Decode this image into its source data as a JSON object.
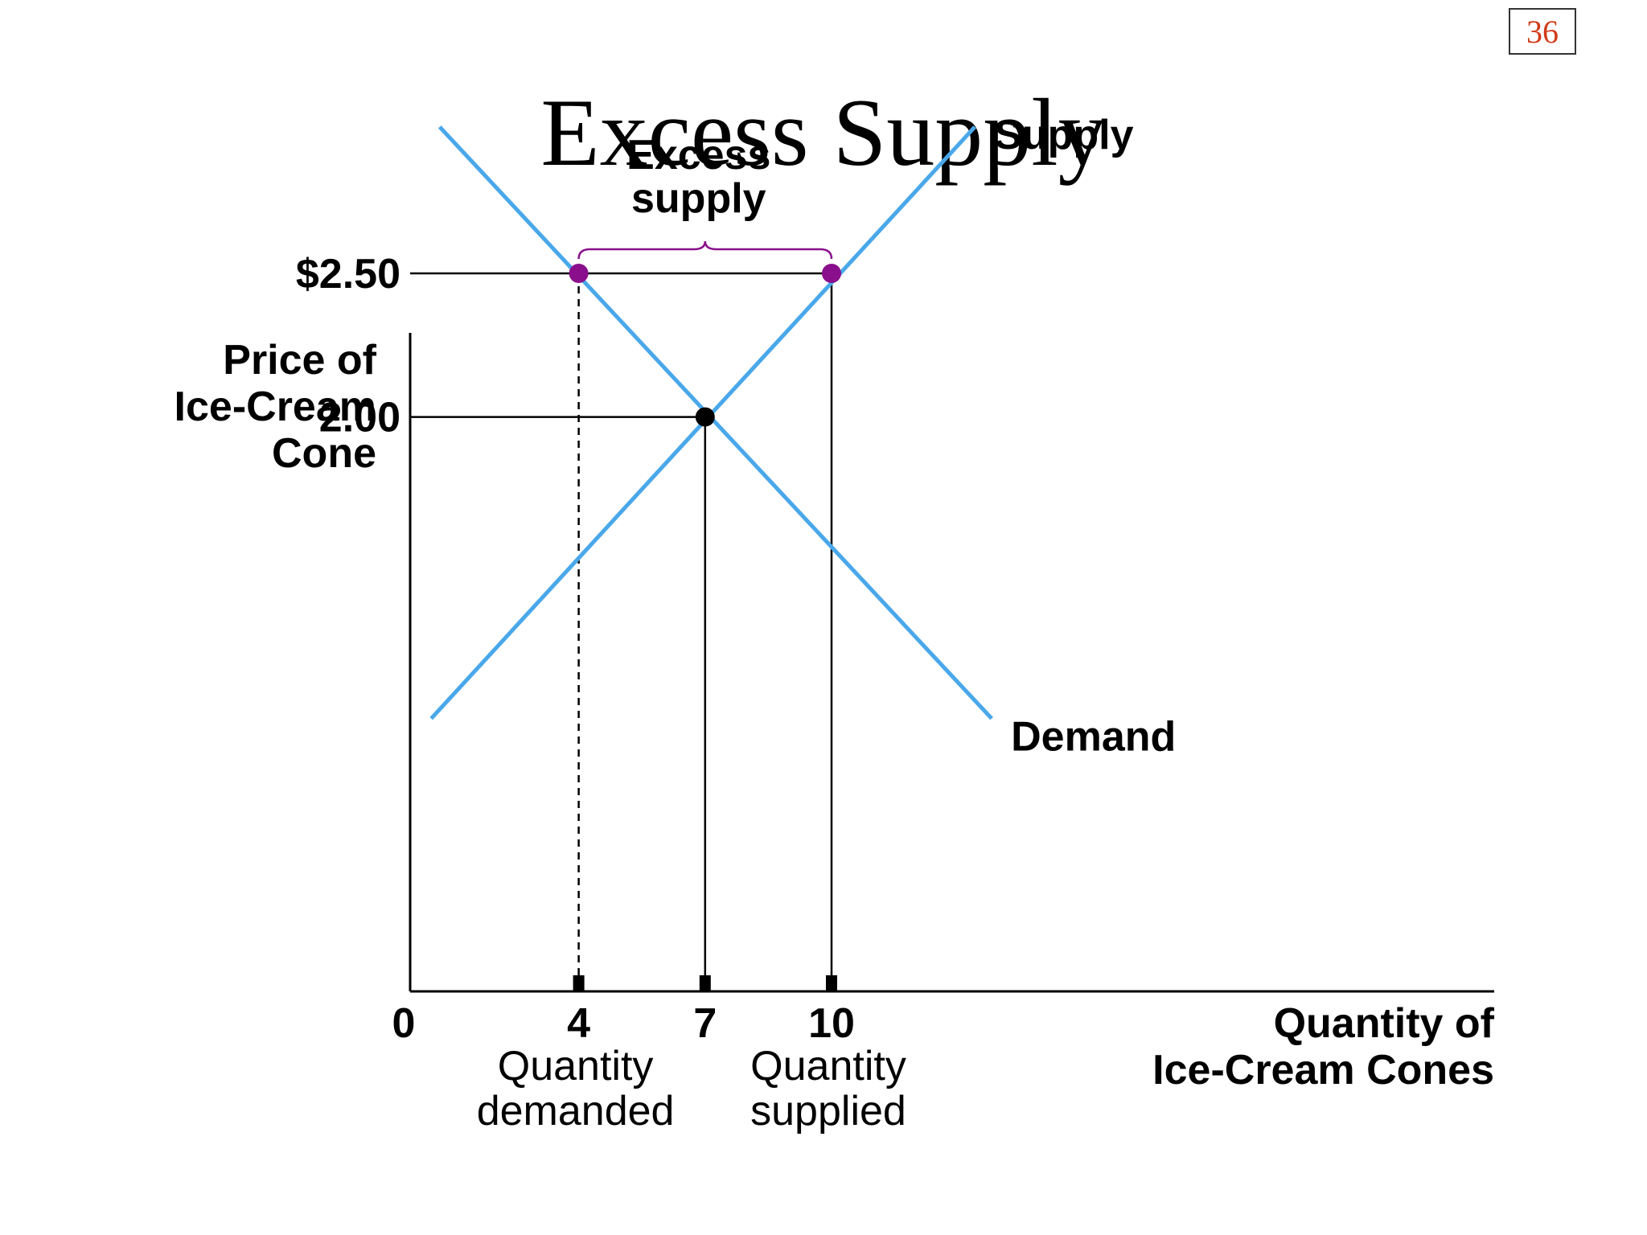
{
  "slide_number": "36",
  "title": "Excess Supply",
  "chart_data": {
    "type": "line",
    "title": "Excess Supply",
    "ylabel": [
      "Price of",
      "Ice-Cream",
      "Cone"
    ],
    "xlabel": [
      "Quantity of",
      "Ice-Cream Cones"
    ],
    "xlim": [
      0,
      20
    ],
    "ylim": [
      0,
      4.5
    ],
    "grid": false,
    "origin_label": "0",
    "series": [
      {
        "name": "Supply",
        "color": "#4aa8ea",
        "points": [
          [
            0.5,
            0.95
          ],
          [
            13.4,
            3.01
          ]
        ]
      },
      {
        "name": "Demand",
        "color": "#4aa8ea",
        "points": [
          [
            0.7,
            3.01
          ],
          [
            13.8,
            0.95
          ]
        ]
      }
    ],
    "price_levels": [
      {
        "value": 2.5,
        "label": "$2.50"
      },
      {
        "value": 2.0,
        "label": "2.00"
      }
    ],
    "quantity_marks": [
      {
        "value": 4,
        "label": "4",
        "sublabel": [
          "Quantity",
          "demanded"
        ],
        "style": "dashed",
        "price": 2.5
      },
      {
        "value": 7,
        "label": "7",
        "sublabel": [],
        "style": "solid",
        "price": 2.0
      },
      {
        "value": 10,
        "label": "10",
        "sublabel": [
          "Quantity",
          "supplied"
        ],
        "style": "solid",
        "price": 2.5
      }
    ],
    "points": [
      {
        "x": 4,
        "y": 2.5,
        "color": "#8a0f8c"
      },
      {
        "x": 10,
        "y": 2.5,
        "color": "#8a0f8c"
      },
      {
        "x": 7,
        "y": 2.0,
        "color": "#000000"
      }
    ],
    "annotations": [
      {
        "text": [
          "Excess",
          "supply"
        ],
        "from_x": 4,
        "to_x": 10,
        "at_y": 2.5,
        "color": "#8a0f8c"
      }
    ]
  }
}
